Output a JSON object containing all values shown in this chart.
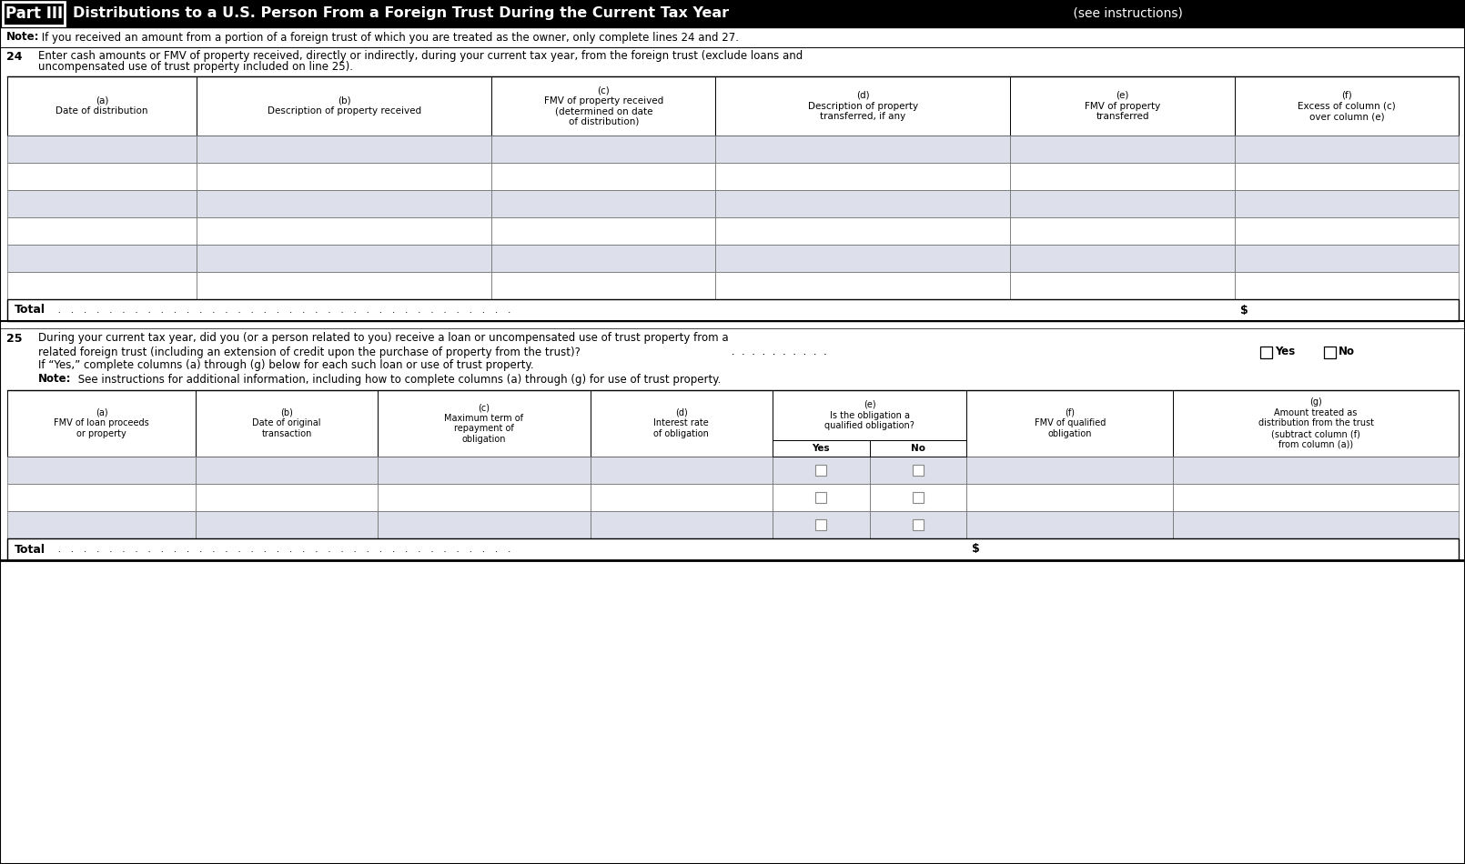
{
  "bg_color": "#ffffff",
  "part_label": "Part III",
  "title_bold": "Distributions to a U.S. Person From a Foreign Trust During the Current Tax Year",
  "title_normal": " (see instructions)",
  "note_text_bold": "Note:",
  "note_text": " If you received an amount from a portion of a foreign trust of which you are treated as the owner, only complete lines 24 and 27.",
  "line24_num": "24",
  "line24_text1": "Enter cash amounts or FMV of property received, directly or indirectly, during your current tax year, from the foreign trust (exclude loans and",
  "line24_text2": "uncompensated use of trust property included on line 25).",
  "col_headers_24": [
    "(a)\nDate of distribution",
    "(b)\nDescription of property received",
    "(c)\nFMV of property received\n(determined on date\nof distribution)",
    "(d)\nDescription of property\ntransferred, if any",
    "(e)\nFMV of property\ntransferred",
    "(f)\nExcess of column (c)\nover column (e)"
  ],
  "col_widths_24_raw": [
    148,
    230,
    175,
    230,
    175,
    175
  ],
  "num_data_rows_24": 6,
  "line25_num": "25",
  "line25_text1": "During your current tax year, did you (or a person related to you) receive a loan or uncompensated use of trust property from a",
  "line25_text2": "related foreign trust (including an extension of credit upon the purchase of property from the trust)?",
  "line25_dots": " .  .  .  .  .  .  .  .  .  .",
  "line25_yes": "Yes",
  "line25_no": "No",
  "line25_ifyes": "If “Yes,” complete columns (a) through (g) below for each such loan or use of trust property.",
  "line25_note_bold": "Note:",
  "line25_note": " See instructions for additional information, including how to complete columns (a) through (g) for use of trust property.",
  "col_headers_25_main": [
    "(a)\nFMV of loan proceeds\nor property",
    "(b)\nDate of original\ntransaction",
    "(c)\nMaximum term of\nrepayment of\nobligation",
    "(d)\nInterest rate\nof obligation",
    "(e)\nIs the obligation a\nqualified obligation?",
    "(f)\nFMV of qualified\nobligation",
    "(g)\nAmount treated as\ndistribution from the trust\n(subtract column (f)\nfrom column (a))"
  ],
  "col_widths_25_raw": [
    155,
    150,
    175,
    150,
    160,
    170,
    235
  ],
  "col25_yes_no_labels": [
    "Yes",
    "No"
  ],
  "num_data_rows_25": 3,
  "total_label": "Total",
  "dollar_sign": "$",
  "row_fill_light": "#dde0ea",
  "row_fill_white": "#ffffff",
  "header_black": "#000000",
  "header_white": "#ffffff",
  "border_dark": "#000000",
  "border_mid": "#666666",
  "border_light": "#999999"
}
